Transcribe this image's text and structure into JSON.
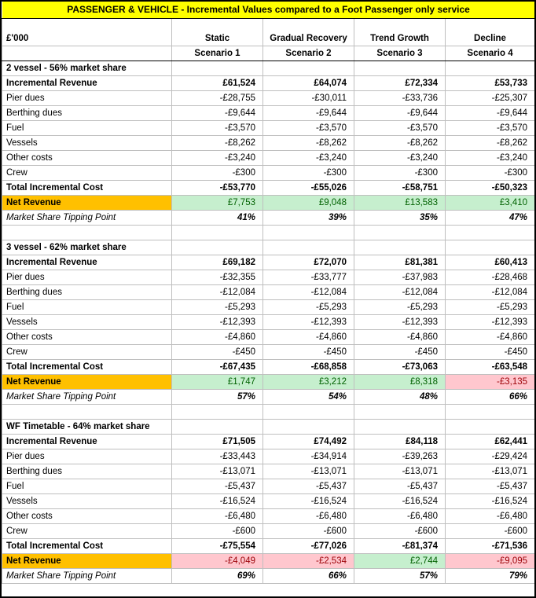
{
  "title": "PASSENGER & VEHICLE - Incremental Values compared to a Foot Passenger only service",
  "unit_label": "£'000",
  "columns": [
    {
      "name": "Static",
      "scenario": "Scenario 1"
    },
    {
      "name": "Gradual Recovery",
      "scenario": "Scenario 2"
    },
    {
      "name": "Trend Growth",
      "scenario": "Scenario 3"
    },
    {
      "name": "Decline",
      "scenario": "Scenario 4"
    }
  ],
  "sections": [
    {
      "header": "2 vessel - 56% market share",
      "rows": [
        {
          "label": "Incremental Revenue",
          "bold": true,
          "values": [
            "£61,524",
            "£64,074",
            "£72,334",
            "£53,733"
          ]
        },
        {
          "label": "Pier dues",
          "bold": false,
          "values": [
            "-£28,755",
            "-£30,011",
            "-£33,736",
            "-£25,307"
          ]
        },
        {
          "label": "Berthing dues",
          "bold": false,
          "values": [
            "-£9,644",
            "-£9,644",
            "-£9,644",
            "-£9,644"
          ]
        },
        {
          "label": "Fuel",
          "bold": false,
          "values": [
            "-£3,570",
            "-£3,570",
            "-£3,570",
            "-£3,570"
          ]
        },
        {
          "label": "Vessels",
          "bold": false,
          "values": [
            "-£8,262",
            "-£8,262",
            "-£8,262",
            "-£8,262"
          ]
        },
        {
          "label": "Other costs",
          "bold": false,
          "values": [
            "-£3,240",
            "-£3,240",
            "-£3,240",
            "-£3,240"
          ]
        },
        {
          "label": "Crew",
          "bold": false,
          "values": [
            "-£300",
            "-£300",
            "-£300",
            "-£300"
          ]
        },
        {
          "label": "Total Incremental Cost",
          "bold": true,
          "values": [
            "-£53,770",
            "-£55,026",
            "-£58,751",
            "-£50,323"
          ]
        }
      ],
      "net_revenue": {
        "label": "Net Revenue",
        "values": [
          "£7,753",
          "£9,048",
          "£13,583",
          "£3,410"
        ],
        "status": [
          "positive",
          "positive",
          "positive",
          "positive"
        ]
      },
      "tipping_point": {
        "label": "Market Share Tipping Point",
        "values": [
          "41%",
          "39%",
          "35%",
          "47%"
        ]
      }
    },
    {
      "header": "3 vessel - 62% market share",
      "rows": [
        {
          "label": "Incremental Revenue",
          "bold": true,
          "values": [
            "£69,182",
            "£72,070",
            "£81,381",
            "£60,413"
          ]
        },
        {
          "label": "Pier dues",
          "bold": false,
          "values": [
            "-£32,355",
            "-£33,777",
            "-£37,983",
            "-£28,468"
          ]
        },
        {
          "label": "Berthing dues",
          "bold": false,
          "values": [
            "-£12,084",
            "-£12,084",
            "-£12,084",
            "-£12,084"
          ]
        },
        {
          "label": "Fuel",
          "bold": false,
          "values": [
            "-£5,293",
            "-£5,293",
            "-£5,293",
            "-£5,293"
          ]
        },
        {
          "label": "Vessels",
          "bold": false,
          "values": [
            "-£12,393",
            "-£12,393",
            "-£12,393",
            "-£12,393"
          ]
        },
        {
          "label": "Other costs",
          "bold": false,
          "values": [
            "-£4,860",
            "-£4,860",
            "-£4,860",
            "-£4,860"
          ]
        },
        {
          "label": "Crew",
          "bold": false,
          "values": [
            "-£450",
            "-£450",
            "-£450",
            "-£450"
          ]
        },
        {
          "label": "Total Incremental Cost",
          "bold": true,
          "values": [
            "-£67,435",
            "-£68,858",
            "-£73,063",
            "-£63,548"
          ]
        }
      ],
      "net_revenue": {
        "label": "Net Revenue",
        "values": [
          "£1,747",
          "£3,212",
          "£8,318",
          "-£3,135"
        ],
        "status": [
          "positive",
          "positive",
          "positive",
          "negative"
        ]
      },
      "tipping_point": {
        "label": "Market Share Tipping Point",
        "values": [
          "57%",
          "54%",
          "48%",
          "66%"
        ]
      }
    },
    {
      "header": "WF Timetable - 64% market share",
      "rows": [
        {
          "label": "Incremental Revenue",
          "bold": true,
          "values": [
            "£71,505",
            "£74,492",
            "£84,118",
            "£62,441"
          ]
        },
        {
          "label": "Pier dues",
          "bold": false,
          "values": [
            "-£33,443",
            "-£34,914",
            "-£39,263",
            "-£29,424"
          ]
        },
        {
          "label": "Berthing dues",
          "bold": false,
          "values": [
            "-£13,071",
            "-£13,071",
            "-£13,071",
            "-£13,071"
          ]
        },
        {
          "label": "Fuel",
          "bold": false,
          "values": [
            "-£5,437",
            "-£5,437",
            "-£5,437",
            "-£5,437"
          ]
        },
        {
          "label": "Vessels",
          "bold": false,
          "values": [
            "-£16,524",
            "-£16,524",
            "-£16,524",
            "-£16,524"
          ]
        },
        {
          "label": "Other costs",
          "bold": false,
          "values": [
            "-£6,480",
            "-£6,480",
            "-£6,480",
            "-£6,480"
          ]
        },
        {
          "label": "Crew",
          "bold": false,
          "values": [
            "-£600",
            "-£600",
            "-£600",
            "-£600"
          ]
        },
        {
          "label": "Total Incremental Cost",
          "bold": true,
          "values": [
            "-£75,554",
            "-£77,026",
            "-£81,374",
            "-£71,536"
          ]
        }
      ],
      "net_revenue": {
        "label": "Net Revenue",
        "values": [
          "-£4,049",
          "-£2,534",
          "£2,744",
          "-£9,095"
        ],
        "status": [
          "negative",
          "negative",
          "positive",
          "negative"
        ]
      },
      "tipping_point": {
        "label": "Market Share Tipping Point",
        "values": [
          "69%",
          "66%",
          "57%",
          "79%"
        ]
      }
    }
  ],
  "colors": {
    "title_bg": "#FFFF00",
    "net_revenue_label_bg": "#FFC000",
    "positive_bg": "#C6EFCE",
    "positive_text": "#006100",
    "negative_bg": "#FFC7CE",
    "negative_text": "#9C0006",
    "gridline": "#BFBFBF",
    "outer_border": "#000000"
  }
}
